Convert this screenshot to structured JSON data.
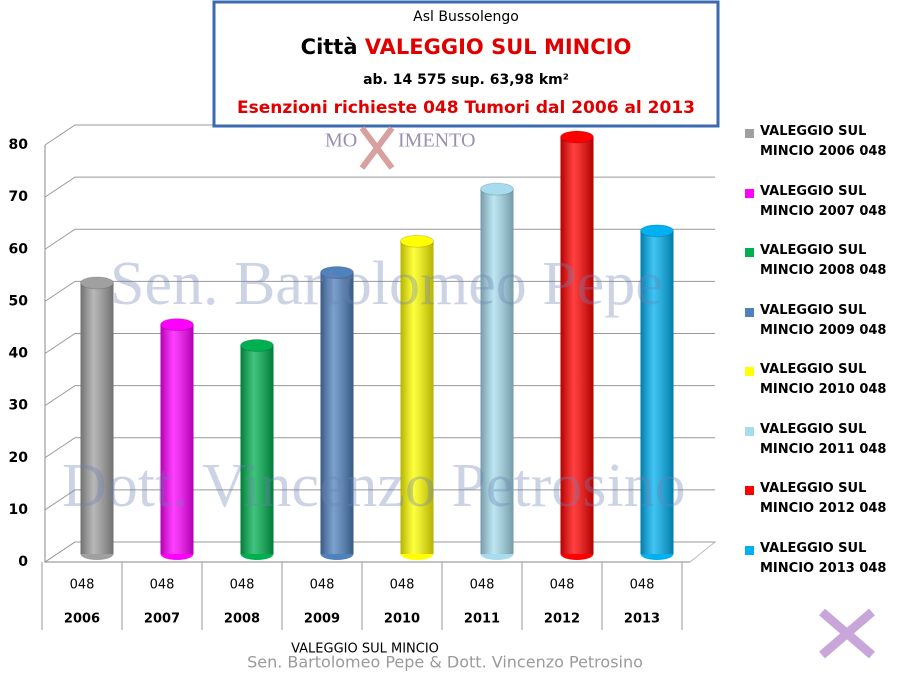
{
  "chart_data": {
    "type": "bar",
    "title": {
      "line1": "Asl Bussolengo",
      "line2a": "Città",
      "line2b": "VALEGGIO SUL MINCIO",
      "line3": "ab. 14 575   sup. 63,98 km²",
      "line4": "Esenzioni richieste 048 Tumori  dal 2006 al 2013"
    },
    "watermarks": [
      "Sen. Bartolomeo Pepe",
      "Dott. Vincenzo Petrosino"
    ],
    "logo": [
      "MO",
      "IMENTO"
    ],
    "footer": "Sen. Bartolomeo Pepe &  Dott. Vincenzo Petrosino",
    "x_label": "VALEGGIO SUL MINCIO",
    "categories": [
      "048",
      "048",
      "048",
      "048",
      "048",
      "048",
      "048",
      "048"
    ],
    "years": [
      "2006",
      "2007",
      "2008",
      "2009",
      "2010",
      "2011",
      "2012",
      "2013"
    ],
    "ylim": [
      0,
      80
    ],
    "yticks": [
      0,
      10,
      20,
      30,
      40,
      50,
      60,
      70,
      80
    ],
    "grid": true,
    "legend": "right",
    "series": [
      {
        "name": "VALEGGIO SUL MINCIO 2006 048",
        "color": "#a0a0a0",
        "values": [
          52,
          null,
          null,
          null,
          null,
          null,
          null,
          null
        ]
      },
      {
        "name": "VALEGGIO SUL MINCIO 2007 048",
        "color": "#ff00ff",
        "values": [
          null,
          44,
          null,
          null,
          null,
          null,
          null,
          null
        ]
      },
      {
        "name": "VALEGGIO SUL MINCIO 2008 048",
        "color": "#00b050",
        "values": [
          null,
          null,
          40,
          null,
          null,
          null,
          null,
          null
        ]
      },
      {
        "name": "VALEGGIO SUL MINCIO 2009 048",
        "color": "#4f81bd",
        "values": [
          null,
          null,
          null,
          54,
          null,
          null,
          null,
          null
        ]
      },
      {
        "name": "VALEGGIO SUL MINCIO 2010 048",
        "color": "#ffff00",
        "values": [
          null,
          null,
          null,
          null,
          60,
          null,
          null,
          null
        ]
      },
      {
        "name": "VALEGGIO SUL MINCIO 2011 048",
        "color": "#a6dcee",
        "values": [
          null,
          null,
          null,
          null,
          null,
          70,
          null,
          null
        ]
      },
      {
        "name": "VALEGGIO SUL MINCIO 2012 048",
        "color": "#ff0000",
        "values": [
          null,
          null,
          null,
          null,
          null,
          null,
          80,
          null
        ]
      },
      {
        "name": "VALEGGIO SUL MINCIO 2013 048",
        "color": "#00b0f0",
        "values": [
          null,
          null,
          null,
          null,
          null,
          null,
          null,
          62
        ]
      }
    ]
  }
}
